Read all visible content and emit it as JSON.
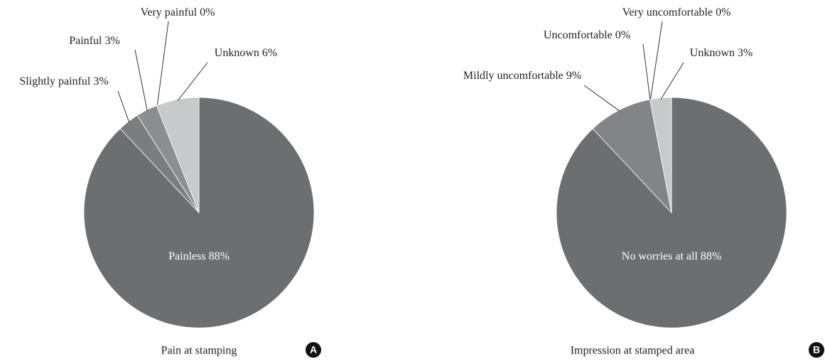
{
  "chart_data": [
    {
      "type": "pie",
      "title": "Pain at stamping",
      "panel": "A",
      "categories": [
        "Painless",
        "Slightly painful",
        "Painful",
        "Very painful",
        "Unknown"
      ],
      "values": [
        88,
        3,
        3,
        0,
        6
      ],
      "value_labels": [
        "88%",
        "3%",
        "3%",
        "0%",
        "6%"
      ],
      "colors": [
        "#6d6e71",
        "#7c7d80",
        "#8d8e91",
        "#a3a4a6",
        "#c8c9cb"
      ]
    },
    {
      "type": "pie",
      "title": "Impression at stamped area",
      "panel": "B",
      "categories": [
        "No worries at all",
        "Mildly uncomfortable",
        "Uncomfortable",
        "Very uncomfortable",
        "Unknown"
      ],
      "values": [
        88,
        9,
        0,
        0,
        3
      ],
      "value_labels": [
        "88%",
        "9%",
        "0%",
        "0%",
        "3%"
      ],
      "colors": [
        "#6d6e71",
        "#838487",
        "#999a9c",
        "#a9aaac",
        "#c8c9cb"
      ]
    }
  ]
}
